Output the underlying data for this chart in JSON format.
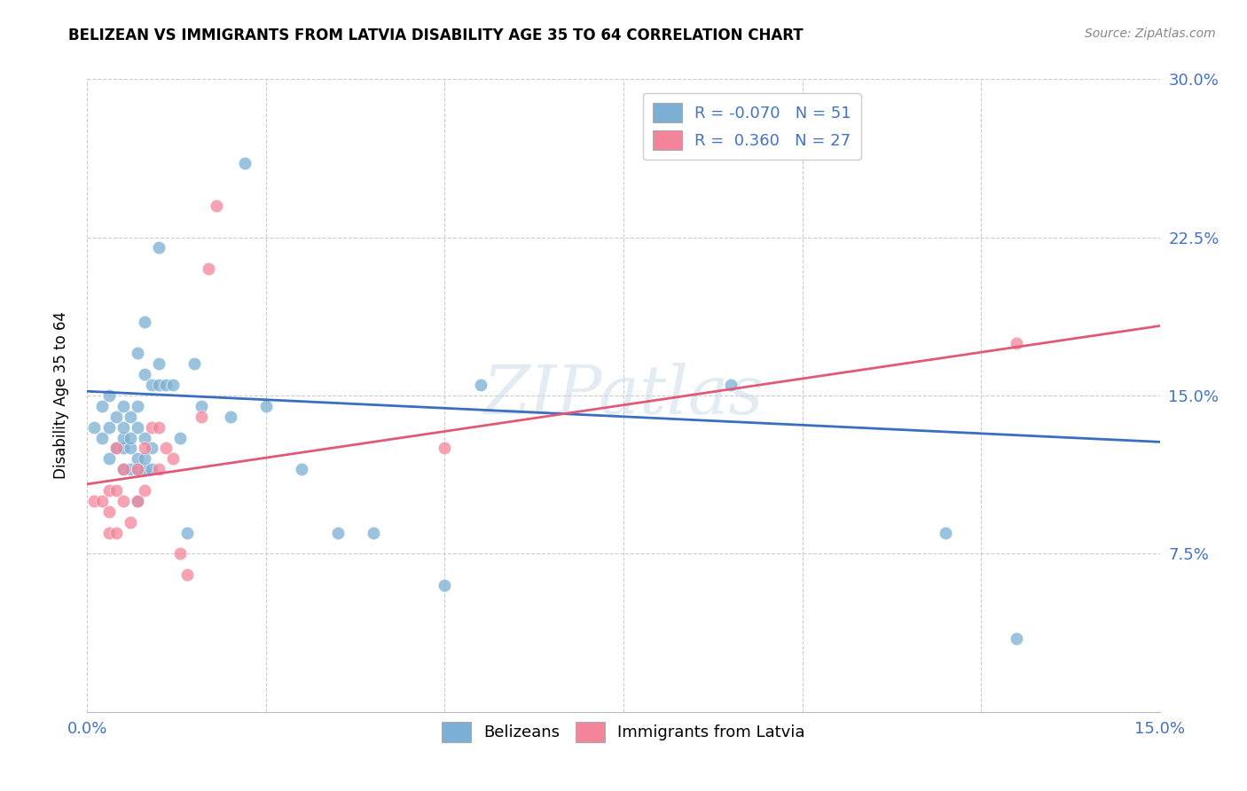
{
  "title": "BELIZEAN VS IMMIGRANTS FROM LATVIA DISABILITY AGE 35 TO 64 CORRELATION CHART",
  "source": "Source: ZipAtlas.com",
  "ylabel": "Disability Age 35 to 64",
  "xlim": [
    0.0,
    0.15
  ],
  "ylim": [
    0.0,
    0.3
  ],
  "xtick_positions": [
    0.0,
    0.025,
    0.05,
    0.075,
    0.1,
    0.125,
    0.15
  ],
  "xtick_labels": [
    "0.0%",
    "",
    "",
    "",
    "",
    "",
    "15.0%"
  ],
  "ytick_positions": [
    0.0,
    0.075,
    0.15,
    0.225,
    0.3
  ],
  "ytick_labels_right": [
    "",
    "7.5%",
    "15.0%",
    "22.5%",
    "30.0%"
  ],
  "legend_top": [
    "R = -0.070   N = 51",
    "R =  0.360   N = 27"
  ],
  "legend_bottom": [
    "Belizeans",
    "Immigrants from Latvia"
  ],
  "belizean_color": "#7bafd4",
  "latvia_color": "#f4849a",
  "blue_line_color": "#3a6fbf",
  "pink_line_color": "#e05a78",
  "watermark": "ZIPatlas",
  "blue_line_x": [
    0.0,
    0.15
  ],
  "blue_line_y": [
    0.152,
    0.128
  ],
  "pink_line_x": [
    0.0,
    0.15
  ],
  "pink_line_y": [
    0.108,
    0.183
  ],
  "belizean_x": [
    0.001,
    0.002,
    0.002,
    0.003,
    0.003,
    0.003,
    0.004,
    0.004,
    0.005,
    0.005,
    0.005,
    0.005,
    0.005,
    0.006,
    0.006,
    0.006,
    0.006,
    0.007,
    0.007,
    0.007,
    0.007,
    0.007,
    0.007,
    0.008,
    0.008,
    0.008,
    0.008,
    0.008,
    0.009,
    0.009,
    0.009,
    0.01,
    0.01,
    0.01,
    0.011,
    0.012,
    0.013,
    0.014,
    0.015,
    0.016,
    0.02,
    0.022,
    0.025,
    0.03,
    0.035,
    0.04,
    0.05,
    0.055,
    0.09,
    0.12,
    0.13
  ],
  "belizean_y": [
    0.135,
    0.13,
    0.145,
    0.12,
    0.135,
    0.15,
    0.125,
    0.14,
    0.115,
    0.125,
    0.13,
    0.135,
    0.145,
    0.115,
    0.125,
    0.13,
    0.14,
    0.1,
    0.115,
    0.12,
    0.135,
    0.145,
    0.17,
    0.115,
    0.12,
    0.13,
    0.16,
    0.185,
    0.115,
    0.125,
    0.155,
    0.155,
    0.165,
    0.22,
    0.155,
    0.155,
    0.13,
    0.085,
    0.165,
    0.145,
    0.14,
    0.26,
    0.145,
    0.115,
    0.085,
    0.085,
    0.06,
    0.155,
    0.155,
    0.085,
    0.035
  ],
  "latvia_x": [
    0.001,
    0.002,
    0.003,
    0.003,
    0.003,
    0.004,
    0.004,
    0.004,
    0.005,
    0.005,
    0.006,
    0.007,
    0.007,
    0.008,
    0.008,
    0.009,
    0.01,
    0.01,
    0.011,
    0.012,
    0.013,
    0.014,
    0.016,
    0.017,
    0.018,
    0.05,
    0.13
  ],
  "latvia_y": [
    0.1,
    0.1,
    0.085,
    0.095,
    0.105,
    0.085,
    0.105,
    0.125,
    0.1,
    0.115,
    0.09,
    0.1,
    0.115,
    0.105,
    0.125,
    0.135,
    0.115,
    0.135,
    0.125,
    0.12,
    0.075,
    0.065,
    0.14,
    0.21,
    0.24,
    0.125,
    0.175
  ]
}
